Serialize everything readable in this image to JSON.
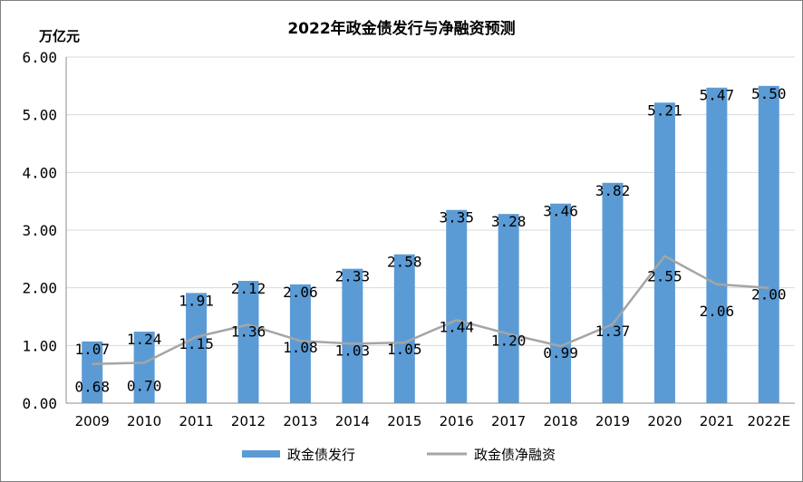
{
  "chart_data": {
    "type": "bar",
    "title": "2022年政金债发行与净融资预测",
    "ylabel": "万亿元",
    "xlabel": "",
    "ylim": [
      0,
      6
    ],
    "yticks": [
      "0.00",
      "1.00",
      "2.00",
      "3.00",
      "4.00",
      "5.00",
      "6.00"
    ],
    "categories": [
      "2009",
      "2010",
      "2011",
      "2012",
      "2013",
      "2014",
      "2015",
      "2016",
      "2017",
      "2018",
      "2019",
      "2020",
      "2021",
      "2022E"
    ],
    "series": [
      {
        "name": "政金债发行",
        "type": "bar",
        "color": "#5B9BD5",
        "values": [
          1.07,
          1.24,
          1.91,
          2.12,
          2.06,
          2.33,
          2.58,
          3.35,
          3.28,
          3.46,
          3.82,
          5.21,
          5.47,
          5.5
        ],
        "labels": [
          "1.07",
          "1.24",
          "1.91",
          "2.12",
          "2.06",
          "2.33",
          "2.58",
          "3.35",
          "3.28",
          "3.46",
          "3.82",
          "5.21",
          "5.47",
          "5.50"
        ]
      },
      {
        "name": "政金债净融资",
        "type": "line",
        "color": "#A5A5A5",
        "values": [
          0.68,
          0.7,
          1.15,
          1.36,
          1.08,
          1.03,
          1.05,
          1.44,
          1.2,
          0.99,
          1.37,
          2.55,
          2.06,
          2.0
        ],
        "labels": [
          "0.68",
          "0.70",
          "1.15",
          "1.36",
          "1.08",
          "1.03",
          "1.05",
          "1.44",
          "1.20",
          "0.99",
          "1.37",
          "2.55",
          "2.06",
          "2.00"
        ]
      }
    ],
    "grid": true,
    "legend": "bottom"
  }
}
